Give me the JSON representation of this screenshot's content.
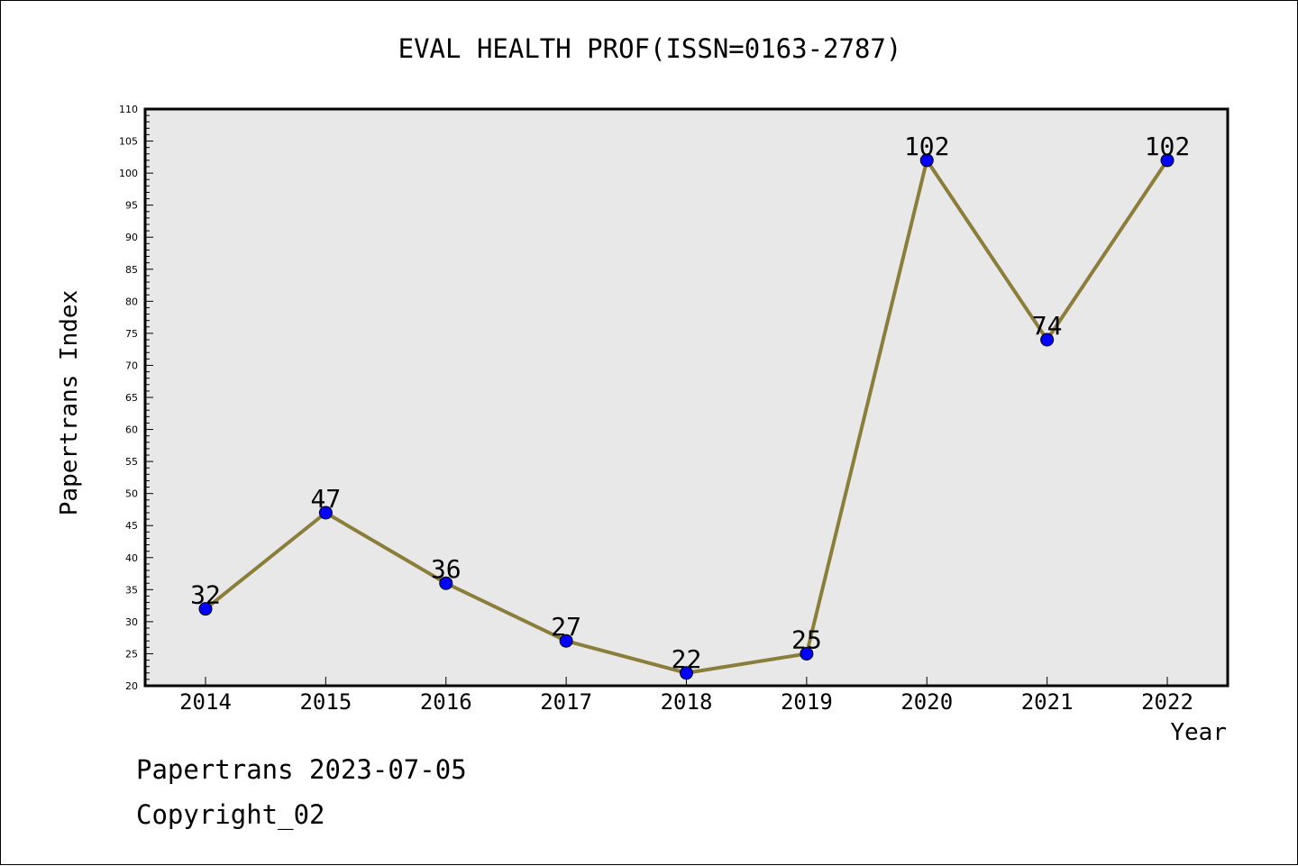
{
  "chart_data": {
    "type": "line",
    "title": "EVAL HEALTH PROF(ISSN=0163-2787)",
    "xlabel": "Year",
    "ylabel": "Papertrans Index",
    "categories": [
      "2014",
      "2015",
      "2016",
      "2017",
      "2018",
      "2019",
      "2020",
      "2021",
      "2022"
    ],
    "series": [
      {
        "values": [
          32,
          47,
          36,
          27,
          22,
          25,
          102,
          74,
          102
        ]
      }
    ],
    "data_labels": [
      "32",
      "47",
      "36",
      "27",
      "22",
      "25",
      "102",
      "74",
      "102"
    ],
    "ylim": [
      20,
      110
    ],
    "y_major_step": 5,
    "y_minor_step": 1,
    "grid": false,
    "colors": {
      "line": "#8b7d3a",
      "marker": "#0000ff",
      "plot_bg": "#e8e8e8"
    }
  },
  "footer": {
    "line1": "Papertrans 2023-07-05",
    "line2": "Copyright_02"
  }
}
